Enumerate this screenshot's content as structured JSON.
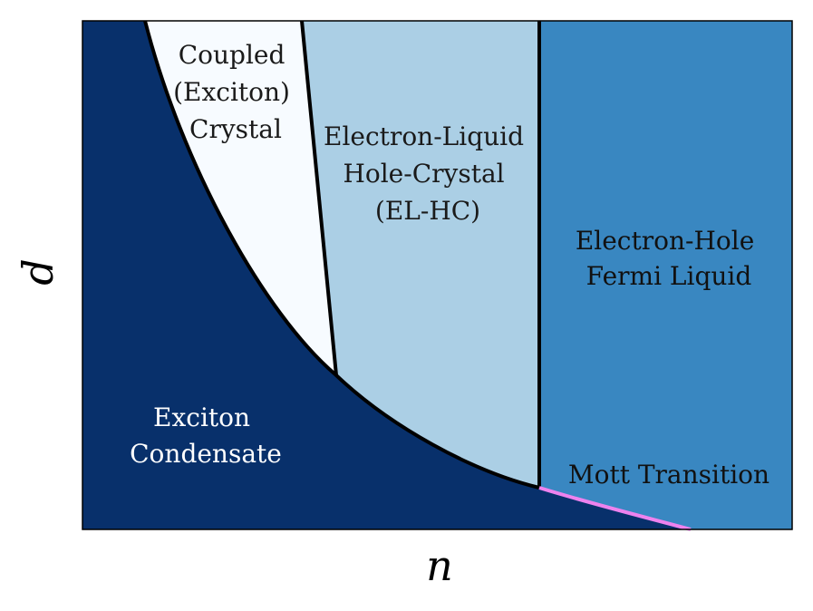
{
  "axes": {
    "xlabel": "n",
    "ylabel": "d"
  },
  "regions": [
    {
      "id": "exciton-condensate",
      "lines": [
        "Exciton",
        "Condensate"
      ],
      "fill": "#08306b",
      "text_color": "#ffffff"
    },
    {
      "id": "coupled-exciton-crystal",
      "lines": [
        "Coupled",
        "(Exciton)",
        "Crystal"
      ],
      "fill": "#f7fbff",
      "text_color": "#1a1a1a"
    },
    {
      "id": "el-hc",
      "lines": [
        "Electron-Liquid",
        "Hole-Crystal",
        "(EL-HC)"
      ],
      "fill": "#abcfe5",
      "text_color": "#1a1a1a"
    },
    {
      "id": "eh-fermi-liquid",
      "lines": [
        "Electron-Hole",
        "Fermi Liquid"
      ],
      "fill": "#3987c1",
      "text_color": "#111111"
    }
  ],
  "annotations": {
    "mott_transition": {
      "text": "Mott Transition",
      "line_color": "#ee82ee"
    }
  },
  "colors": {
    "boundary": "#000000"
  }
}
